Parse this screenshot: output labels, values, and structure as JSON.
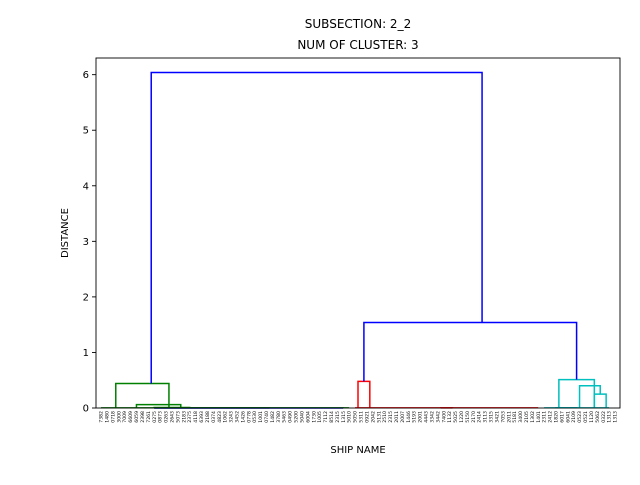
{
  "chart_data": {
    "type": "dendrogram",
    "title_lines": [
      "SUBSECTION: 2_2",
      "NUM OF CLUSTER: 3"
    ],
    "xlabel": "SHIP NAME",
    "ylabel": "DISTANCE",
    "ylim": [
      0,
      6.3
    ],
    "yticks": [
      "0",
      "1",
      "2",
      "3",
      "4",
      "5",
      "6"
    ],
    "clusters": 3,
    "colors": {
      "cluster_1": "#008000",
      "cluster_2": "#ff0000",
      "cluster_3": "#00bfbf",
      "above_cut": "#0000ff"
    },
    "leaves": [
      "7382",
      "1480",
      "0718",
      "3000",
      "7009",
      "6609",
      "6059",
      "2398",
      "7261",
      "0275",
      "0873",
      "0263",
      "2643",
      "5073",
      "2183",
      "2375",
      "4118",
      "6393",
      "2188",
      "0374",
      "4823",
      "1062",
      "3243",
      "3452",
      "1426",
      "0778",
      "0530",
      "1001",
      "0740",
      "1482",
      "3780",
      "5463",
      "0490",
      "5200",
      "5040",
      "6004",
      "1730",
      "1005",
      "7112",
      "8514",
      "2315",
      "1315",
      "5010",
      "5050",
      "5311",
      "0921",
      "2042",
      "5131",
      "2510",
      "2315",
      "2011",
      "2007",
      "1446",
      "5193",
      "2001",
      "4443",
      "3342",
      "3442",
      "7400",
      "1132",
      "5025",
      "1220",
      "5150",
      "2170",
      "2414",
      "3113",
      "3315",
      "3421",
      "7053",
      "2011",
      "5181",
      "3400",
      "2105",
      "1302",
      "1401",
      "2311",
      "2412",
      "1820",
      "6017",
      "6041",
      "2109",
      "0523",
      "0521",
      "1120",
      "5062",
      "0322",
      "1313",
      "1313"
    ],
    "merges": [
      {
        "left": [
          0,
          18
        ],
        "right": [
          19,
          38
        ],
        "height": 0.002
      },
      {
        "left": [
          0,
          18
        ],
        "right": [
          39,
          43
        ],
        "height": 0.001
      },
      {
        "left": [
          6,
          12
        ],
        "right": [
          13,
          17
        ],
        "height": 0.01
      },
      {
        "left": [
          3,
          9
        ],
        "right": [
          10,
          17
        ],
        "height": 0.06
      },
      {
        "left": [
          0,
          5
        ],
        "right": [
          6,
          17
        ],
        "height": 0.44
      },
      {
        "left": [
          43,
          44
        ],
        "right": [
          45,
          46
        ],
        "height": 0.48
      },
      {
        "left": [
          45,
          70
        ],
        "right": [
          47,
          72
        ],
        "height": 0.002
      },
      {
        "left": [
          75,
          79
        ],
        "right": [
          80,
          81
        ],
        "height": 0.004
      },
      {
        "left": [
          83,
          84
        ],
        "right": [
          85,
          86
        ],
        "height": 0.25
      },
      {
        "left": [
          80,
          82
        ],
        "right": [
          83,
          86
        ],
        "height": 0.4
      },
      {
        "left": [
          75,
          80
        ],
        "right": [
          81,
          86
        ],
        "height": 0.51
      },
      {
        "left": [
          43,
          46
        ],
        "right": [
          75,
          86
        ],
        "height": 1.54
      },
      {
        "left": [
          0,
          17
        ],
        "right": [
          43,
          86
        ],
        "height": 6.04
      }
    ]
  }
}
